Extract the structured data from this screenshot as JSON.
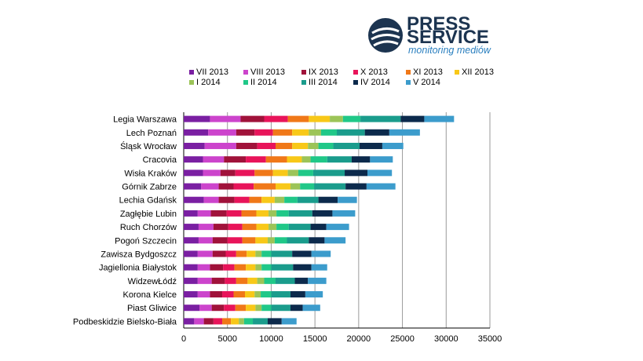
{
  "logo": {
    "line1": "PRESS",
    "line2": "SERVICE",
    "tagline": "monitoring mediów"
  },
  "chart_data": {
    "type": "bar",
    "orientation": "horizontal",
    "stacked": true,
    "title": "",
    "xlabel": "",
    "ylabel": "",
    "xlim": [
      0,
      35000
    ],
    "xticks": [
      0,
      5000,
      10000,
      15000,
      20000,
      25000,
      30000,
      35000
    ],
    "grid": "vertical",
    "legend_position": "top",
    "categories": [
      "Legia Warszawa",
      "Lech Poznań",
      "Śląsk Wrocław",
      "Cracovia",
      "Wisła Kraków",
      "Górnik Zabrze",
      "Lechia Gdańsk",
      "Zagłębie Lubin",
      "Ruch Chorzów",
      "Pogoń Szczecin",
      "Zawisza Bydgoszcz",
      "Jagiellonia Białystok",
      "WidzewŁódź",
      "Korona Kielce",
      "Piast Gliwice",
      "Podbeskidzie Bielsko-Biała"
    ],
    "series": [
      {
        "name": "VII 2013",
        "color": "#7a1fa2",
        "values": [
          3000,
          2800,
          2400,
          2200,
          2200,
          2000,
          2300,
          1600,
          1700,
          1700,
          1600,
          1600,
          1600,
          1600,
          1800,
          1200
        ]
      },
      {
        "name": "VIII 2013",
        "color": "#cc44cc",
        "values": [
          3500,
          3200,
          3600,
          2400,
          2000,
          2000,
          1700,
          1500,
          1700,
          1600,
          1700,
          1400,
          1600,
          1400,
          1400,
          1100
        ]
      },
      {
        "name": "IX 2013",
        "color": "#a0123a",
        "values": [
          2700,
          2100,
          2400,
          2500,
          1700,
          1700,
          1800,
          1800,
          1700,
          1700,
          1500,
          1500,
          1500,
          1400,
          1400,
          1100
        ]
      },
      {
        "name": "X 2013",
        "color": "#e8145a",
        "values": [
          2700,
          2100,
          2100,
          2300,
          2200,
          2300,
          1700,
          1700,
          1600,
          1700,
          1200,
          1300,
          1300,
          1300,
          1300,
          1000
        ]
      },
      {
        "name": "XI 2013",
        "color": "#f07818",
        "values": [
          2400,
          2200,
          1900,
          2400,
          2100,
          2500,
          1400,
          1700,
          1600,
          1500,
          1200,
          1300,
          1300,
          1300,
          1200,
          1000
        ]
      },
      {
        "name": "XII 2013",
        "color": "#f8c818",
        "values": [
          2400,
          1900,
          1800,
          1700,
          1700,
          1700,
          1500,
          1400,
          1400,
          1400,
          1000,
          1100,
          1100,
          1100,
          1100,
          900
        ]
      },
      {
        "name": "I 2014",
        "color": "#9cc458",
        "values": [
          1500,
          1400,
          1200,
          1000,
          1200,
          1100,
          1100,
          900,
          900,
          800,
          700,
          700,
          800,
          700,
          700,
          600
        ]
      },
      {
        "name": "II 2014",
        "color": "#20c888",
        "values": [
          2000,
          1800,
          1700,
          1900,
          1700,
          1600,
          1500,
          1400,
          1400,
          1400,
          1100,
          1100,
          1300,
          1200,
          1100,
          1000
        ]
      },
      {
        "name": "III 2014",
        "color": "#1a9c8c",
        "values": [
          4600,
          3200,
          3000,
          2800,
          3600,
          3600,
          2400,
          2700,
          2500,
          2500,
          2400,
          2500,
          2200,
          2200,
          2200,
          1700
        ]
      },
      {
        "name": "IV 2014",
        "color": "#0c2a4c",
        "values": [
          2700,
          2800,
          2600,
          2100,
          2600,
          2400,
          2200,
          2300,
          1800,
          1800,
          2200,
          2100,
          1500,
          1700,
          1400,
          1600
        ]
      },
      {
        "name": "V 2014",
        "color": "#3c9ccc",
        "values": [
          3400,
          3500,
          2400,
          2600,
          2800,
          3300,
          2200,
          2600,
          2600,
          2400,
          2200,
          1800,
          2100,
          2000,
          2000,
          1700
        ]
      }
    ]
  }
}
